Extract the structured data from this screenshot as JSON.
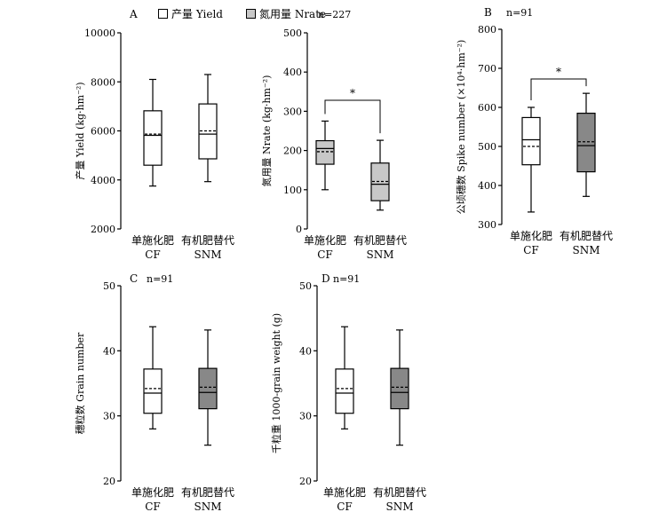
{
  "legend": {
    "yield_label": "产量 Yield",
    "nrate_label": "氮用量 Nrate",
    "yield_color": "#ffffff",
    "nrate_color": "#c8c8c8"
  },
  "chart_data": [
    {
      "id": "A-yield",
      "panel": "A",
      "type": "box",
      "ylabel": "产量 Yield (kg·hm⁻²)",
      "ylim": [
        2000,
        10000
      ],
      "yticks": [
        2000,
        4000,
        6000,
        8000,
        10000
      ],
      "categories": [
        {
          "cn": "单施化肥",
          "en": "CF"
        },
        {
          "cn": "有机肥替代",
          "en": "SNM"
        }
      ],
      "boxes": [
        {
          "min": 3750,
          "q1": 4600,
          "median": 5820,
          "mean": 5870,
          "q3": 6820,
          "max": 8100,
          "fill": "#ffffff"
        },
        {
          "min": 3930,
          "q1": 4860,
          "median": 5870,
          "mean": 6000,
          "q3": 7100,
          "max": 8300,
          "fill": "#ffffff"
        }
      ],
      "n_label": "",
      "significance": ""
    },
    {
      "id": "A-nrate",
      "panel": "",
      "type": "box",
      "ylabel": "氮用量 Nrate (kg·hm⁻²)",
      "ylim": [
        0,
        500
      ],
      "yticks": [
        0,
        100,
        200,
        300,
        400,
        500
      ],
      "categories": [
        {
          "cn": "单施化肥",
          "en": "CF"
        },
        {
          "cn": "有机肥替代",
          "en": "SNM"
        }
      ],
      "boxes": [
        {
          "min": 100,
          "q1": 165,
          "median": 205,
          "mean": 197,
          "q3": 225,
          "max": 275,
          "fill": "#c8c8c8"
        },
        {
          "min": 48,
          "q1": 72,
          "median": 114,
          "mean": 121,
          "q3": 168,
          "max": 226,
          "fill": "#c8c8c8"
        }
      ],
      "n_label": "n=227",
      "significance": "*"
    },
    {
      "id": "B-spike",
      "panel": "B",
      "type": "box",
      "ylabel": "公顷穗数 Spike number (×10⁴·hm⁻²)",
      "ylim": [
        300,
        800
      ],
      "yticks": [
        300,
        400,
        500,
        600,
        700,
        800
      ],
      "categories": [
        {
          "cn": "单施化肥",
          "en": "CF"
        },
        {
          "cn": "有机肥替代",
          "en": "SNM"
        }
      ],
      "boxes": [
        {
          "min": 332,
          "q1": 453,
          "median": 517,
          "mean": 500,
          "q3": 574,
          "max": 600,
          "fill": "#ffffff"
        },
        {
          "min": 372,
          "q1": 435,
          "median": 502,
          "mean": 512,
          "q3": 585,
          "max": 636,
          "fill": "#888888"
        }
      ],
      "n_label": "n=91",
      "significance": "*"
    },
    {
      "id": "C-grain",
      "panel": "C",
      "type": "box",
      "ylabel": "穗粒数 Grain number",
      "ylim": [
        20,
        50
      ],
      "yticks": [
        20,
        30,
        40,
        50
      ],
      "categories": [
        {
          "cn": "单施化肥",
          "en": "CF"
        },
        {
          "cn": "有机肥替代",
          "en": "SNM"
        }
      ],
      "boxes": [
        {
          "min": 28,
          "q1": 30.4,
          "median": 33.5,
          "mean": 34.2,
          "q3": 37.2,
          "max": 43.7,
          "fill": "#ffffff"
        },
        {
          "min": 25.5,
          "q1": 31.1,
          "median": 33.6,
          "mean": 34.4,
          "q3": 37.3,
          "max": 43.2,
          "fill": "#888888"
        }
      ],
      "n_label": "n=91",
      "significance": ""
    },
    {
      "id": "D-tgw",
      "panel": "D",
      "type": "box",
      "ylabel": "千粒重 1000-grain weight (g)",
      "ylim": [
        20,
        50
      ],
      "yticks": [
        20,
        30,
        40,
        50
      ],
      "categories": [
        {
          "cn": "单施化肥",
          "en": "CF"
        },
        {
          "cn": "有机肥替代",
          "en": "SNM"
        }
      ],
      "boxes": [
        {
          "min": 28,
          "q1": 30.4,
          "median": 33.5,
          "mean": 34.2,
          "q3": 37.2,
          "max": 43.7,
          "fill": "#ffffff"
        },
        {
          "min": 25.5,
          "q1": 31.1,
          "median": 33.6,
          "mean": 34.4,
          "q3": 37.3,
          "max": 43.2,
          "fill": "#888888"
        }
      ],
      "n_label": "n=91",
      "significance": ""
    }
  ]
}
